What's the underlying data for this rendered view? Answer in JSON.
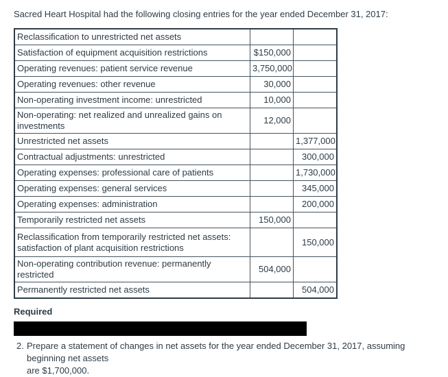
{
  "intro": "Sacred Heart Hospital had the following closing entries for the year ended December 31, 2017:",
  "journal_table": {
    "columns": [
      "description",
      "debit",
      "credit"
    ],
    "rows": [
      {
        "label": "Reclassification to unrestricted net assets",
        "indent": 0,
        "debit": "",
        "credit": "",
        "tall": false
      },
      {
        "label": "Satisfaction of equipment acquisition restrictions",
        "indent": 1,
        "debit": "$150,000",
        "credit": "",
        "tall": false
      },
      {
        "label": "Operating revenues: patient service revenue",
        "indent": 0,
        "debit": "3,750,000",
        "credit": "",
        "tall": false
      },
      {
        "label": "Operating revenues: other revenue",
        "indent": 0,
        "debit": "30,000",
        "credit": "",
        "tall": false
      },
      {
        "label": "Non-operating investment income: unrestricted",
        "indent": 0,
        "debit": "10,000",
        "credit": "",
        "tall": false
      },
      {
        "label": "Non-operating: net realized and unrealized gains on investments",
        "indent": 0,
        "debit": "12,000",
        "credit": "",
        "tall": false
      },
      {
        "label": "Unrestricted net assets",
        "indent": 2,
        "debit": "",
        "credit": "1,377,000",
        "tall": false
      },
      {
        "label": "Contractual adjustments: unrestricted",
        "indent": 2,
        "debit": "",
        "credit": "300,000",
        "tall": false
      },
      {
        "label": "Operating expenses: professional care of patients",
        "indent": 2,
        "debit": "",
        "credit": "1,730,000",
        "tall": false
      },
      {
        "label": "Operating expenses: general services",
        "indent": 2,
        "debit": "",
        "credit": "345,000",
        "tall": false
      },
      {
        "label": "Operating expenses: administration",
        "indent": 2,
        "debit": "",
        "credit": "200,000",
        "tall": false
      },
      {
        "label": "Temporarily restricted net assets",
        "indent": 0,
        "debit": "150,000",
        "credit": "",
        "tall": false
      },
      {
        "label": "Reclassification from temporarily restricted net assets:\nsatisfaction of plant acquisition restrictions",
        "indent": 2,
        "debit": "",
        "credit": "150,000",
        "tall": true
      },
      {
        "label": "Non-operating contribution revenue: permanently restricted",
        "indent": 0,
        "debit": "504,000",
        "credit": "",
        "tall": false
      },
      {
        "label": "Permanently restricted net assets",
        "indent": 1,
        "debit": "",
        "credit": "504,000",
        "tall": false
      }
    ]
  },
  "required": {
    "label": "Required",
    "item2": {
      "number": "2.",
      "text": "Prepare a statement of changes in net assets for the year ended December 31, 2017, assuming beginning net assets\nare $1,700,000."
    }
  },
  "colors": {
    "text": "#2D3B45",
    "table_border": "#2D3B45",
    "redaction": "#000000",
    "background": "#ffffff"
  }
}
